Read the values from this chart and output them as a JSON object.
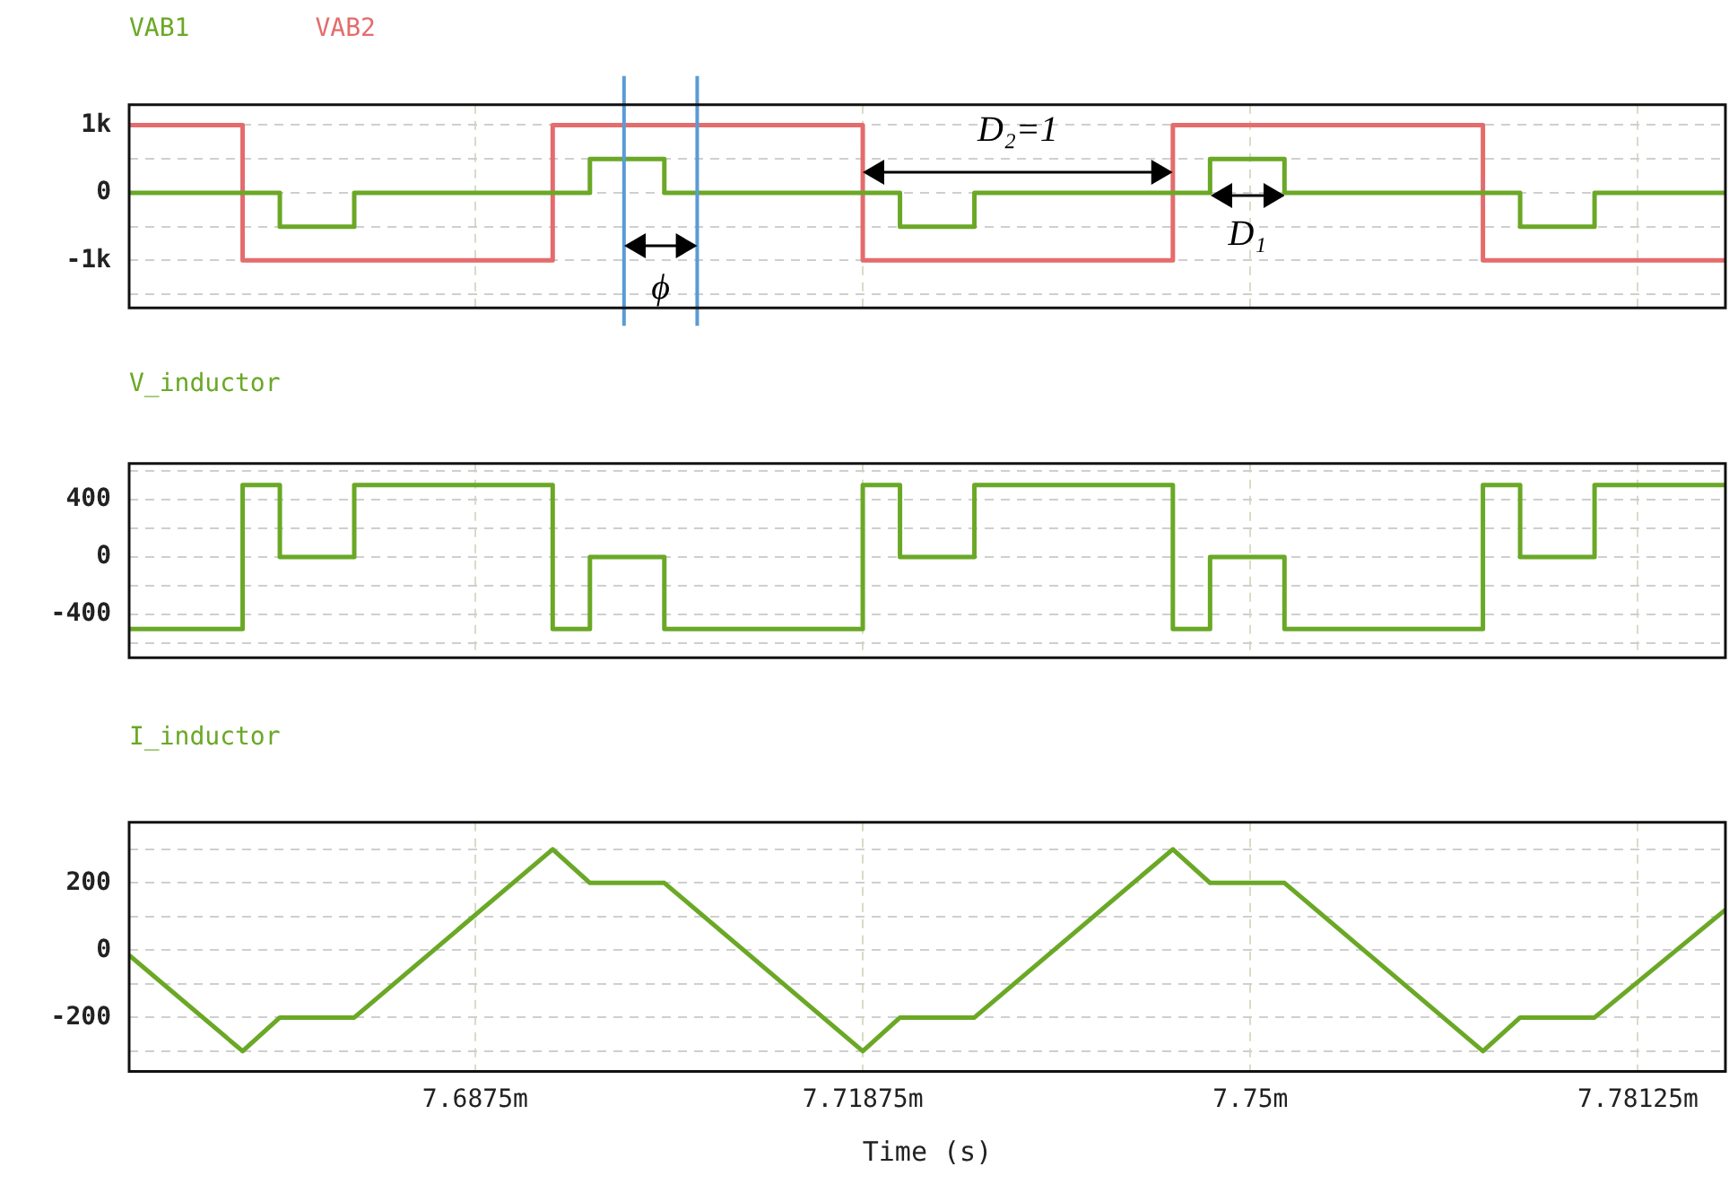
{
  "chart_data": [
    {
      "type": "step",
      "xlim": [
        7.6596,
        7.7883
      ],
      "xticks": [
        {
          "value": 7.6875,
          "label": null
        },
        {
          "value": 7.71875,
          "label": null
        },
        {
          "value": 7.75,
          "label": null
        },
        {
          "value": 7.78125,
          "label": null
        }
      ],
      "ylim": [
        -1700,
        1300
      ],
      "yticks": [
        {
          "value": -1500,
          "label": null
        },
        {
          "value": -1000,
          "label": "-1k"
        },
        {
          "value": -500,
          "label": null
        },
        0,
        {
          "value": 500,
          "label": null
        },
        {
          "value": 1000,
          "label": "1k"
        }
      ],
      "grid": true,
      "legend": "top left",
      "tick_labels": "y",
      "series": [
        {
          "name": "VAB1",
          "color": "#6aa826",
          "x": [
            7.6596,
            7.67175,
            7.67775,
            7.69675,
            7.70275,
            7.72175,
            7.72775,
            7.74675,
            7.75275,
            7.77175,
            7.77775,
            7.7883
          ],
          "values": [
            0,
            -500,
            0,
            500,
            0,
            -500,
            0,
            500,
            0,
            -500,
            0,
            0
          ]
        },
        {
          "name": "VAB2",
          "color": "#e46c6c",
          "x": [
            7.6596,
            7.66875,
            7.69375,
            7.71875,
            7.74375,
            7.76875,
            7.7883
          ],
          "values": [
            1000,
            -1000,
            1000,
            -1000,
            1000,
            -1000,
            -1000
          ]
        }
      ],
      "ref_lines": [
        {
          "axis": "x",
          "value": 7.6995,
          "color": "#5b9bd5"
        },
        {
          "axis": "x",
          "value": 7.7054,
          "color": "#5b9bd5"
        }
      ],
      "annotations": [
        "ϕ",
        "D₂=1",
        "D₁"
      ]
    },
    {
      "type": "step",
      "xlim": [
        7.6596,
        7.7883
      ],
      "xticks": [
        {
          "value": 7.6875,
          "label": null
        },
        {
          "value": 7.71875,
          "label": null
        },
        {
          "value": 7.75,
          "label": null
        },
        {
          "value": 7.78125,
          "label": null
        }
      ],
      "ylim": [
        -700,
        650
      ],
      "yticks": [
        {
          "value": -600,
          "label": null
        },
        -400,
        {
          "value": -200,
          "label": null
        },
        0,
        {
          "value": 200,
          "label": null
        },
        400,
        {
          "value": 600,
          "label": null
        }
      ],
      "grid": true,
      "legend": "top left",
      "tick_labels": "y",
      "series": [
        {
          "name": "V_inductor",
          "color": "#6aa826",
          "x": [
            7.6596,
            7.66875,
            7.67175,
            7.67775,
            7.69375,
            7.69675,
            7.70275,
            7.71875,
            7.72175,
            7.72775,
            7.74375,
            7.74675,
            7.75275,
            7.76875,
            7.77175,
            7.77775,
            7.7883
          ],
          "values": [
            -500,
            500,
            0,
            500,
            -500,
            0,
            -500,
            500,
            0,
            500,
            -500,
            0,
            -500,
            500,
            0,
            500,
            500
          ]
        }
      ]
    },
    {
      "type": "line",
      "xlabel": "Time (s)",
      "xlim": [
        7.6596,
        7.7883
      ],
      "xticks": [
        {
          "value": 7.6875,
          "label": "7.6875m"
        },
        {
          "value": 7.71875,
          "label": "7.71875m"
        },
        {
          "value": 7.75,
          "label": "7.75m"
        },
        {
          "value": 7.78125,
          "label": "7.78125m"
        }
      ],
      "ylim": [
        -360,
        380
      ],
      "yticks": [
        {
          "value": -300,
          "label": null
        },
        -200,
        {
          "value": -100,
          "label": null
        },
        0,
        {
          "value": 100,
          "label": null
        },
        200,
        {
          "value": 300,
          "label": null
        }
      ],
      "grid": true,
      "legend": "top left",
      "series": [
        {
          "name": "I_inductor",
          "color": "#6aa826",
          "x": [
            7.6596,
            7.66875,
            7.67175,
            7.67775,
            7.69375,
            7.69675,
            7.70275,
            7.71875,
            7.72175,
            7.72775,
            7.74375,
            7.74675,
            7.75275,
            7.76875,
            7.77175,
            7.77775,
            7.7883
          ],
          "values": [
            -15,
            -300,
            -200,
            -200,
            300,
            200,
            200,
            -300,
            -200,
            -200,
            300,
            200,
            200,
            -300,
            -200,
            -200,
            120
          ]
        }
      ]
    }
  ]
}
